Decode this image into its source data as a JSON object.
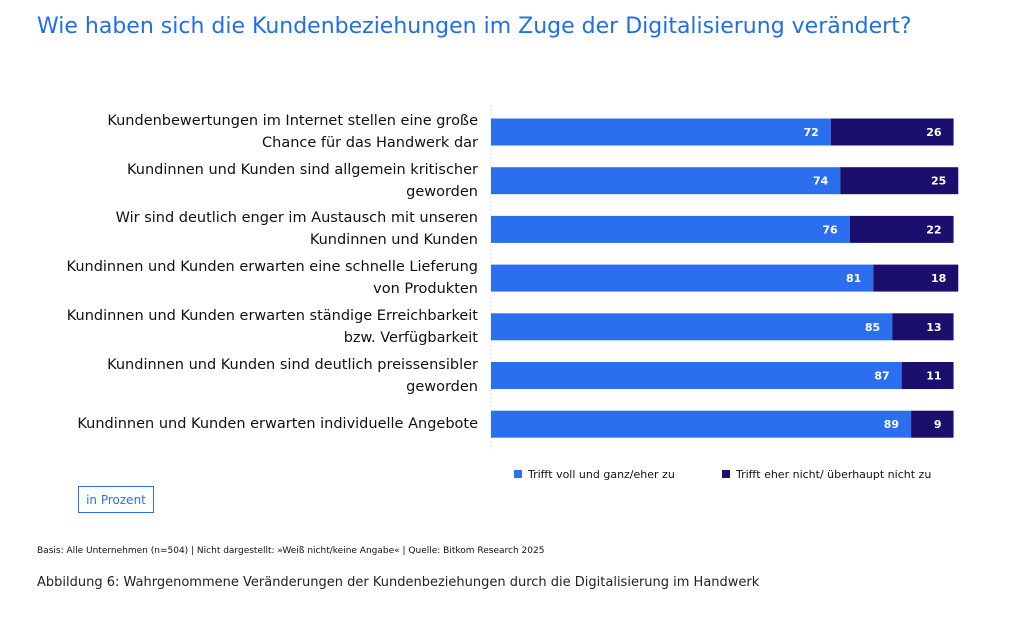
{
  "chart_data": {
    "type": "stacked-bar-horizontal",
    "title": "Wie haben sich die Kundenbeziehungen im Zuge der Digitalisierung verändert?",
    "categories": [
      "Kundenbewertungen im Internet stellen eine große Chance für das Handwerk dar",
      "Kundinnen und Kunden sind allgemein kritischer geworden",
      "Wir sind deutlich enger im Austausch mit unseren Kundinnen und Kunden",
      "Kundinnen und Kunden erwarten eine schnelle Lieferung von Produkten",
      "Kundinnen und Kunden erwarten ständige Erreichbarkeit bzw. Verfügbarkeit",
      "Kundinnen und Kunden sind deutlich preissensibler geworden",
      "Kundinnen und Kunden erwarten individuelle Angebote"
    ],
    "series": [
      {
        "name": "Trifft voll und ganz/eher zu",
        "color": "#2b6fee",
        "values": [
          72,
          74,
          76,
          81,
          85,
          87,
          89
        ]
      },
      {
        "name": "Trifft eher nicht/ überhaupt nicht zu",
        "color": "#1b0f6e",
        "values": [
          26,
          25,
          22,
          18,
          13,
          11,
          9
        ]
      }
    ],
    "xlim": [
      0,
      100
    ],
    "unit_note": "in Prozent",
    "footnote": "Basis: Alle Unternehmen (n=504) | Nicht dargestellt: »Weiß nicht/keine Angabe« | Quelle: Bitkom Research 2025",
    "caption": "Abbildung 6: Wahrgenommene Veränderungen der Kundenbeziehungen durch die Digitalisierung im Handwerk"
  }
}
